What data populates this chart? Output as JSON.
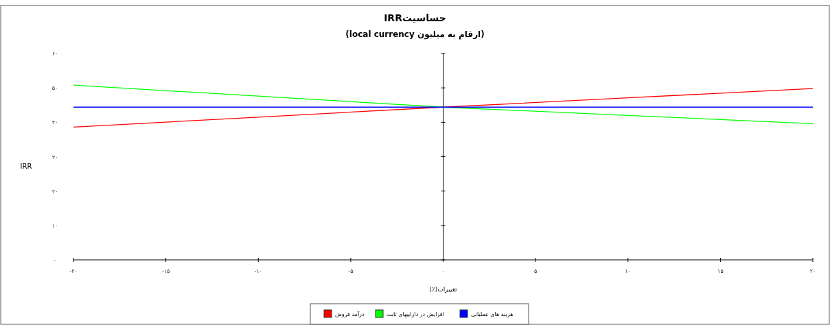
{
  "chart_data": {
    "type": "line",
    "title": "حساسیتIRR",
    "subtitle": "(ارقام به میلیون  local currency)",
    "xlabel": "تغییرات(٪)",
    "ylabel": "IRR",
    "x": [
      -20,
      -10,
      0,
      10,
      20
    ],
    "series": [
      {
        "name": "درآمد فروش",
        "color": "#ff0000",
        "values": [
          38.6,
          41.5,
          44.4,
          47.1,
          49.8
        ]
      },
      {
        "name": "افزایش در داراییهای ثابت",
        "color": "#00ff00",
        "values": [
          50.8,
          47.6,
          44.4,
          42.0,
          39.6
        ]
      },
      {
        "name": "هزینه های عملیاتی",
        "color": "#0000ff",
        "values": [
          44.4,
          44.4,
          44.4,
          44.4,
          44.4
        ]
      }
    ],
    "xlim": [
      -20,
      20
    ],
    "xticks": [
      {
        "value": -20,
        "label": "-۲۰"
      },
      {
        "value": -15,
        "label": "-۱۵"
      },
      {
        "value": -10,
        "label": "-۱۰"
      },
      {
        "value": -5,
        "label": "-۵"
      },
      {
        "value": 0,
        "label": "۰"
      },
      {
        "value": 5,
        "label": "۵"
      },
      {
        "value": 10,
        "label": "۱۰"
      },
      {
        "value": 15,
        "label": "۱۵"
      },
      {
        "value": 20,
        "label": "۲۰"
      }
    ],
    "ylim": [
      0,
      60
    ],
    "yticks": [
      {
        "value": 0,
        "label": "۰"
      },
      {
        "value": 10,
        "label": "۱۰"
      },
      {
        "value": 20,
        "label": "۲۰"
      },
      {
        "value": 30,
        "label": "۳۰"
      },
      {
        "value": 40,
        "label": "۴۰"
      },
      {
        "value": 50,
        "label": "۵۰"
      },
      {
        "value": 60,
        "label": "۶۰"
      }
    ],
    "legend": "bottom",
    "marker": "none",
    "line_style": "solid"
  }
}
